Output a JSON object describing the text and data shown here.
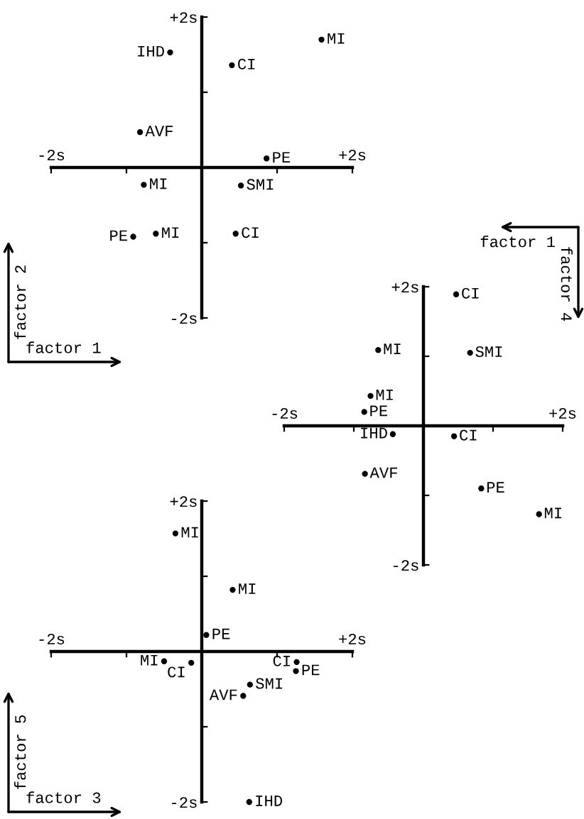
{
  "chart_data": [
    {
      "type": "scatter",
      "xlabel": "factor 1",
      "ylabel": "factor 2",
      "marker": "circle",
      "xlim": [
        -2,
        2
      ],
      "ylim": [
        -2,
        2
      ],
      "xticks": [
        {
          "value": -2,
          "label": "-2s"
        },
        {
          "value": -1,
          "label": null
        },
        {
          "value": 1,
          "label": null
        },
        {
          "value": 2,
          "label": "+2s"
        }
      ],
      "yticks": [
        {
          "value": -2,
          "label": "-2s"
        },
        {
          "value": -1,
          "label": null
        },
        {
          "value": 1,
          "label": null
        },
        {
          "value": 2,
          "label": "+2s"
        }
      ],
      "series": [
        {
          "name": "MI",
          "color": "#000000",
          "x": [
            1.59,
            -0.77,
            -0.61
          ],
          "values": [
            1.7,
            -0.23,
            -0.88
          ]
        },
        {
          "name": "IHD",
          "color": "#000000",
          "x": [
            -0.42
          ],
          "values": [
            1.53
          ]
        },
        {
          "name": "CI",
          "color": "#000000",
          "x": [
            0.4,
            0.45
          ],
          "values": [
            1.36,
            -0.88
          ]
        },
        {
          "name": "AVF",
          "color": "#000000",
          "x": [
            -0.82
          ],
          "values": [
            0.47
          ]
        },
        {
          "name": "PE",
          "color": "#000000",
          "x": [
            0.86,
            -0.91
          ],
          "values": [
            0.12,
            -0.92
          ]
        },
        {
          "name": "SMI",
          "color": "#000000",
          "x": [
            0.52
          ],
          "values": [
            -0.24
          ]
        }
      ]
    },
    {
      "type": "scatter",
      "xlabel": "factor 1",
      "ylabel": "factor 4",
      "marker": "circle",
      "xlim": [
        -2,
        2
      ],
      "ylim": [
        -2,
        2
      ],
      "xticks": [
        {
          "value": -2,
          "label": "-2s"
        },
        {
          "value": -1,
          "label": null
        },
        {
          "value": 1,
          "label": null
        },
        {
          "value": 2,
          "label": "+2s"
        }
      ],
      "yticks": [
        {
          "value": -2,
          "label": "-2s"
        },
        {
          "value": -1,
          "label": null
        },
        {
          "value": 1,
          "label": null
        },
        {
          "value": 2,
          "label": "+2s"
        }
      ],
      "series": [
        {
          "name": "CI",
          "color": "#000000",
          "x": [
            0.47,
            0.44
          ],
          "values": [
            1.89,
            -0.15
          ]
        },
        {
          "name": "SMI",
          "color": "#000000",
          "x": [
            0.67
          ],
          "values": [
            1.05
          ]
        },
        {
          "name": "MI",
          "color": "#000000",
          "x": [
            -0.65,
            -0.76,
            1.66
          ],
          "values": [
            1.09,
            0.43,
            -1.27
          ]
        },
        {
          "name": "PE",
          "color": "#000000",
          "x": [
            -0.85,
            0.83
          ],
          "values": [
            0.2,
            -0.9
          ]
        },
        {
          "name": "IHD",
          "color": "#000000",
          "x": [
            -0.44
          ],
          "values": [
            -0.12
          ]
        },
        {
          "name": "AVF",
          "color": "#000000",
          "x": [
            -0.84
          ],
          "values": [
            -0.69
          ]
        }
      ]
    },
    {
      "type": "scatter",
      "xlabel": "factor 3",
      "ylabel": "factor 5",
      "marker": "circle",
      "xlim": [
        -2,
        2
      ],
      "ylim": [
        -2,
        2
      ],
      "xticks": [
        {
          "value": -2,
          "label": "-2s"
        },
        {
          "value": -1,
          "label": null
        },
        {
          "value": 1,
          "label": null
        },
        {
          "value": 2,
          "label": "+2s"
        }
      ],
      "yticks": [
        {
          "value": -2,
          "label": "-2s"
        },
        {
          "value": -1,
          "label": null
        },
        {
          "value": 1,
          "label": null
        },
        {
          "value": 2,
          "label": "+2s"
        }
      ],
      "series": [
        {
          "name": "MI",
          "color": "#000000",
          "x": [
            -0.35,
            0.41,
            -0.5
          ],
          "values": [
            1.57,
            0.82,
            -0.13
          ]
        },
        {
          "name": "PE",
          "color": "#000000",
          "x": [
            0.06,
            1.25
          ],
          "values": [
            0.22,
            -0.26
          ]
        },
        {
          "name": "CI",
          "color": "#000000",
          "x": [
            -0.14,
            1.26
          ],
          "values": [
            -0.15,
            -0.14
          ]
        },
        {
          "name": "SMI",
          "color": "#000000",
          "x": [
            0.64
          ],
          "values": [
            -0.44
          ]
        },
        {
          "name": "AVF",
          "color": "#000000",
          "x": [
            0.55
          ],
          "values": [
            -0.59
          ]
        },
        {
          "name": "IHD",
          "color": "#000000",
          "x": [
            0.63
          ],
          "values": [
            -2.0
          ]
        }
      ]
    }
  ]
}
